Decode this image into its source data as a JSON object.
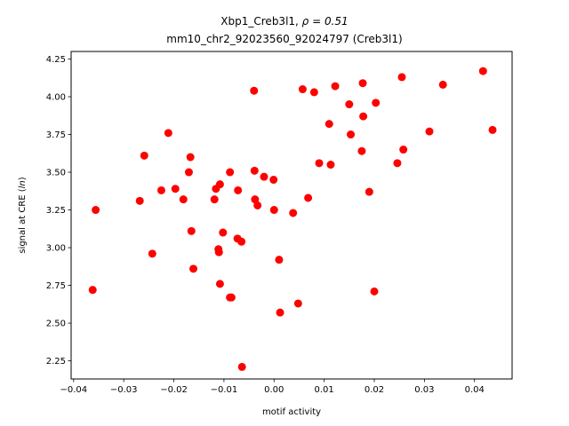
{
  "chart_data": {
    "type": "scatter",
    "title_line1_prefix": "Xbp1_Creb3l1, ",
    "title_line1_rho": "ρ = 0.51",
    "title_line2": "mm10_chr2_92023560_92024797 (Creb3l1)",
    "xlabel": "motif activity",
    "ylabel": "signal at CRE (ln)",
    "xlim": [
      -0.0405,
      0.0475
    ],
    "ylim": [
      2.13,
      4.3
    ],
    "xticks": [
      -0.04,
      -0.03,
      -0.02,
      -0.01,
      0.0,
      0.01,
      0.02,
      0.03,
      0.04
    ],
    "xtick_labels": [
      "−0.04",
      "−0.03",
      "−0.02",
      "−0.01",
      "0.00",
      "0.01",
      "0.02",
      "0.03",
      "0.04"
    ],
    "yticks": [
      2.25,
      2.5,
      2.75,
      3.0,
      3.25,
      3.5,
      3.75,
      4.0,
      4.25
    ],
    "ytick_labels": [
      "2.25",
      "2.50",
      "2.75",
      "3.00",
      "3.25",
      "3.50",
      "3.75",
      "4.00",
      "4.25"
    ],
    "grid": false,
    "legend": "none",
    "marker_color": "#ff0000",
    "points": [
      {
        "x": -0.0362,
        "y": 2.72
      },
      {
        "x": -0.0356,
        "y": 3.25
      },
      {
        "x": -0.0268,
        "y": 3.31
      },
      {
        "x": -0.0259,
        "y": 3.61
      },
      {
        "x": -0.0243,
        "y": 2.96
      },
      {
        "x": -0.0225,
        "y": 3.38
      },
      {
        "x": -0.0211,
        "y": 3.76
      },
      {
        "x": -0.0197,
        "y": 3.39
      },
      {
        "x": -0.0181,
        "y": 3.32
      },
      {
        "x": -0.017,
        "y": 3.5
      },
      {
        "x": -0.0167,
        "y": 3.6
      },
      {
        "x": -0.0165,
        "y": 3.11
      },
      {
        "x": -0.0161,
        "y": 2.86
      },
      {
        "x": -0.0119,
        "y": 3.32
      },
      {
        "x": -0.0116,
        "y": 3.39
      },
      {
        "x": -0.0111,
        "y": 2.99
      },
      {
        "x": -0.011,
        "y": 2.97
      },
      {
        "x": -0.0108,
        "y": 3.42
      },
      {
        "x": -0.0108,
        "y": 2.76
      },
      {
        "x": -0.0102,
        "y": 3.1
      },
      {
        "x": -0.0088,
        "y": 3.5
      },
      {
        "x": -0.0088,
        "y": 2.67
      },
      {
        "x": -0.0085,
        "y": 2.67
      },
      {
        "x": -0.0073,
        "y": 3.06
      },
      {
        "x": -0.0072,
        "y": 3.38
      },
      {
        "x": -0.0065,
        "y": 3.04
      },
      {
        "x": -0.0064,
        "y": 2.21
      },
      {
        "x": -0.004,
        "y": 4.04
      },
      {
        "x": -0.0039,
        "y": 3.51
      },
      {
        "x": -0.0038,
        "y": 3.32
      },
      {
        "x": -0.0033,
        "y": 3.28
      },
      {
        "x": -0.002,
        "y": 3.47
      },
      {
        "x": -0.0001,
        "y": 3.45
      },
      {
        "x": 0.0,
        "y": 3.25
      },
      {
        "x": 0.001,
        "y": 2.92
      },
      {
        "x": 0.0012,
        "y": 2.57
      },
      {
        "x": 0.0038,
        "y": 3.23
      },
      {
        "x": 0.0048,
        "y": 2.63
      },
      {
        "x": 0.0057,
        "y": 4.05
      },
      {
        "x": 0.0068,
        "y": 3.33
      },
      {
        "x": 0.008,
        "y": 4.03
      },
      {
        "x": 0.009,
        "y": 3.56
      },
      {
        "x": 0.011,
        "y": 3.82
      },
      {
        "x": 0.0113,
        "y": 3.55
      },
      {
        "x": 0.0122,
        "y": 4.07
      },
      {
        "x": 0.015,
        "y": 3.95
      },
      {
        "x": 0.0153,
        "y": 3.75
      },
      {
        "x": 0.0175,
        "y": 3.64
      },
      {
        "x": 0.0177,
        "y": 4.09
      },
      {
        "x": 0.0178,
        "y": 3.87
      },
      {
        "x": 0.019,
        "y": 3.37
      },
      {
        "x": 0.02,
        "y": 2.71
      },
      {
        "x": 0.0203,
        "y": 3.96
      },
      {
        "x": 0.0246,
        "y": 3.56
      },
      {
        "x": 0.0255,
        "y": 4.13
      },
      {
        "x": 0.0258,
        "y": 3.65
      },
      {
        "x": 0.031,
        "y": 3.77
      },
      {
        "x": 0.0337,
        "y": 4.08
      },
      {
        "x": 0.0417,
        "y": 4.17
      },
      {
        "x": 0.0436,
        "y": 3.78
      }
    ]
  }
}
